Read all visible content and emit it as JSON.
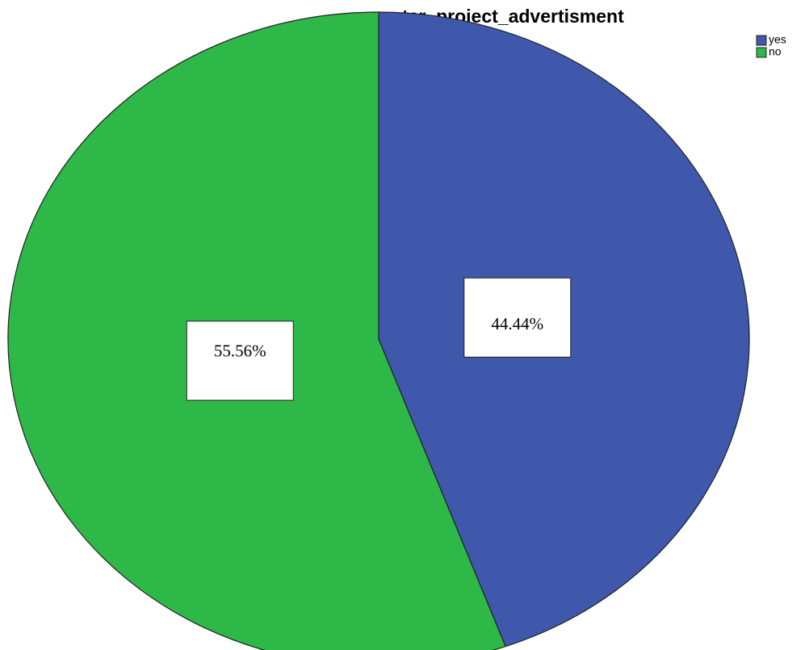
{
  "chart_data": {
    "type": "pie",
    "title": "water_project_advertisment",
    "categories": [
      "yes",
      "no"
    ],
    "values": [
      44.44,
      55.56
    ],
    "value_labels": [
      "44.44%",
      "55.56%"
    ],
    "colors": [
      "#3f58ab",
      "#2eb848"
    ],
    "legend": "top-right"
  }
}
